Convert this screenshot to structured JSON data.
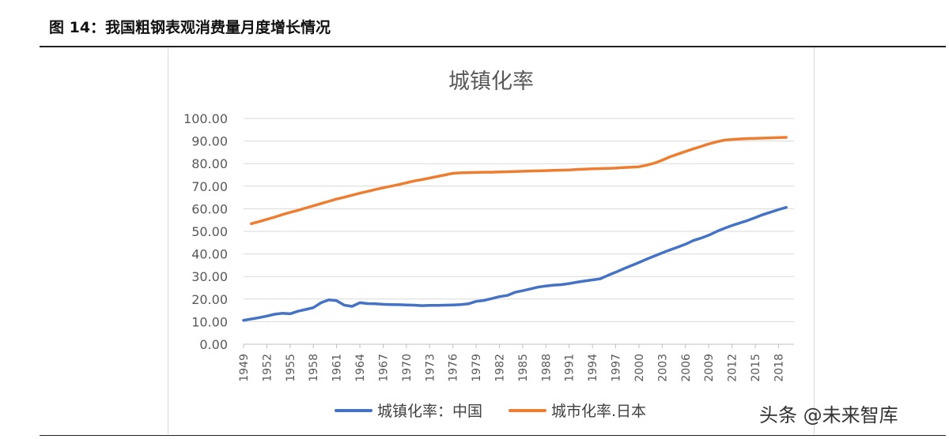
{
  "figure": {
    "caption": "图 14：我国粗钢表观消费量月度增长情况"
  },
  "watermark": "头条 @未来智库",
  "chart_data": {
    "type": "line",
    "title": "城镇化率",
    "ylim": [
      0,
      100
    ],
    "yticks": [
      "0.00",
      "10.00",
      "20.00",
      "30.00",
      "40.00",
      "50.00",
      "60.00",
      "70.00",
      "80.00",
      "90.00",
      "100.00"
    ],
    "xticks": [
      "1949",
      "1952",
      "1955",
      "1958",
      "1961",
      "1964",
      "1967",
      "1970",
      "1973",
      "1976",
      "1979",
      "1982",
      "1985",
      "1988",
      "1991",
      "1994",
      "1997",
      "2000",
      "2003",
      "2006",
      "2009",
      "2012",
      "2015",
      "2018"
    ],
    "grid": true,
    "legend_position": "bottom",
    "series": [
      {
        "name": "城镇化率：中国",
        "color": "#4472c4",
        "x": [
          1949,
          1950,
          1951,
          1952,
          1953,
          1954,
          1955,
          1956,
          1957,
          1958,
          1959,
          1960,
          1961,
          1962,
          1963,
          1964,
          1965,
          1966,
          1967,
          1968,
          1969,
          1970,
          1971,
          1972,
          1973,
          1974,
          1975,
          1976,
          1977,
          1978,
          1979,
          1980,
          1981,
          1982,
          1983,
          1984,
          1985,
          1986,
          1987,
          1988,
          1989,
          1990,
          1991,
          1992,
          1993,
          1994,
          1995,
          1996,
          1997,
          1998,
          1999,
          2000,
          2001,
          2002,
          2003,
          2004,
          2005,
          2006,
          2007,
          2008,
          2009,
          2010,
          2011,
          2012,
          2013,
          2014,
          2015,
          2016,
          2017,
          2018,
          2019
        ],
        "values": [
          10.6,
          11.2,
          11.8,
          12.5,
          13.3,
          13.7,
          13.5,
          14.6,
          15.4,
          16.2,
          18.4,
          19.7,
          19.3,
          17.3,
          16.8,
          18.4,
          18.0,
          17.9,
          17.7,
          17.6,
          17.5,
          17.4,
          17.3,
          17.1,
          17.2,
          17.2,
          17.3,
          17.4,
          17.6,
          17.9,
          19.0,
          19.4,
          20.2,
          21.1,
          21.6,
          23.0,
          23.7,
          24.5,
          25.3,
          25.8,
          26.2,
          26.4,
          26.9,
          27.5,
          28.0,
          28.5,
          29.0,
          30.5,
          31.9,
          33.4,
          34.8,
          36.2,
          37.7,
          39.1,
          40.5,
          41.8,
          43.0,
          44.3,
          45.9,
          47.0,
          48.3,
          49.9,
          51.3,
          52.6,
          53.7,
          54.8,
          56.1,
          57.4,
          58.5,
          59.6,
          60.6
        ]
      },
      {
        "name": "城市化率.日本",
        "color": "#ed7d31",
        "x": [
          1950,
          1951,
          1952,
          1953,
          1954,
          1955,
          1956,
          1957,
          1958,
          1959,
          1960,
          1961,
          1962,
          1963,
          1964,
          1965,
          1966,
          1967,
          1968,
          1969,
          1970,
          1971,
          1972,
          1973,
          1974,
          1975,
          1976,
          1977,
          1978,
          1979,
          1980,
          1981,
          1982,
          1983,
          1984,
          1985,
          1986,
          1987,
          1988,
          1989,
          1990,
          1991,
          1992,
          1993,
          1994,
          1995,
          1996,
          1997,
          1998,
          1999,
          2000,
          2001,
          2002,
          2003,
          2004,
          2005,
          2006,
          2007,
          2008,
          2009,
          2010,
          2011,
          2012,
          2013,
          2014,
          2015,
          2016,
          2017,
          2018,
          2019
        ],
        "values": [
          53.4,
          54.3,
          55.3,
          56.3,
          57.4,
          58.4,
          59.3,
          60.3,
          61.3,
          62.3,
          63.3,
          64.3,
          65.1,
          66.0,
          66.9,
          67.7,
          68.5,
          69.3,
          70.0,
          70.7,
          71.5,
          72.3,
          72.9,
          73.6,
          74.3,
          75.0,
          75.7,
          75.9,
          76.0,
          76.1,
          76.2,
          76.2,
          76.3,
          76.4,
          76.5,
          76.6,
          76.7,
          76.8,
          76.9,
          77.0,
          77.1,
          77.2,
          77.4,
          77.5,
          77.7,
          77.8,
          77.9,
          78.0,
          78.2,
          78.4,
          78.6,
          79.3,
          80.2,
          81.5,
          83.0,
          84.2,
          85.4,
          86.5,
          87.6,
          88.7,
          89.6,
          90.4,
          90.7,
          90.9,
          91.1,
          91.2,
          91.3,
          91.4,
          91.5,
          91.6
        ]
      }
    ]
  }
}
